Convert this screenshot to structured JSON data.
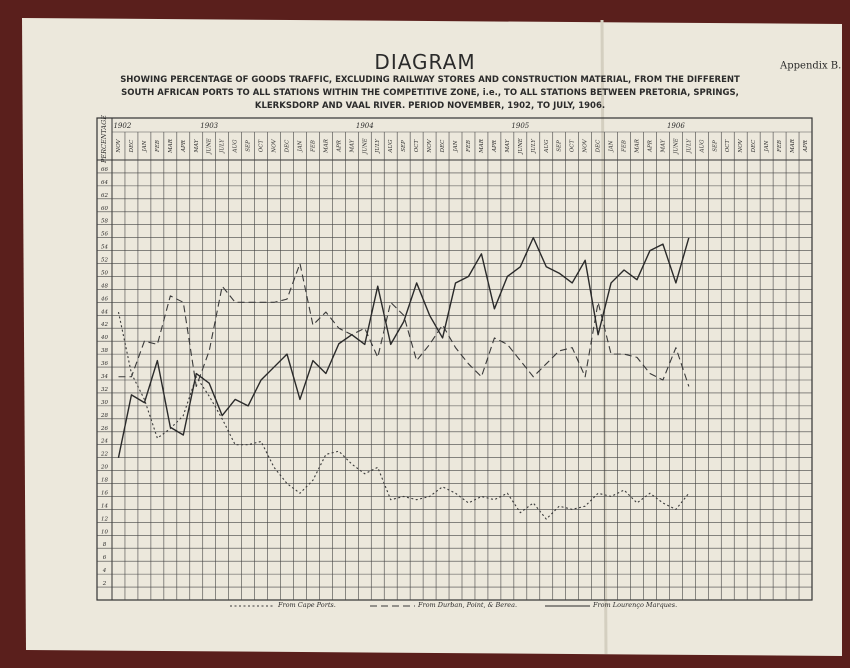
{
  "appendix": "Appendix B.",
  "chart_data": {
    "type": "line",
    "title": "DIAGRAM",
    "subtitle": "SHOWING PERCENTAGE OF GOODS TRAFFIC, EXCLUDING RAILWAY STORES AND CONSTRUCTION MATERIAL, FROM THE DIFFERENT SOUTH AFRICAN PORTS TO ALL STATIONS WITHIN THE COMPETITIVE ZONE, i.e., TO ALL STATIONS BETWEEN PRETORIA, SPRINGS, KLERKSDORP AND VAAL RIVER. PERIOD NOVEMBER, 1902, TO JULY, 1906.",
    "y_label": "PERCENTAGE",
    "year_labels": [
      "1902",
      "1903",
      "1904",
      "1905",
      "1906"
    ],
    "categories": [
      "NOV",
      "DEC",
      "JAN",
      "FEB",
      "MAR",
      "APR",
      "MAY",
      "JUNE",
      "JULY",
      "AUG",
      "SEP",
      "OCT",
      "NOV",
      "DEC",
      "JAN",
      "FEB",
      "MAR",
      "APR",
      "MAY",
      "JUNE",
      "JULY",
      "AUG",
      "SEP",
      "OCT",
      "NOV",
      "DEC",
      "JAN",
      "FEB",
      "MAR",
      "APR",
      "MAY",
      "JUNE",
      "JULY",
      "AUG",
      "SEP",
      "OCT",
      "NOV",
      "DEC",
      "JAN",
      "FEB",
      "MAR",
      "APR",
      "MAY",
      "JUNE",
      "JULY",
      "AUG",
      "SEP",
      "OCT",
      "NOV",
      "DEC",
      "JAN",
      "FEB",
      "MAR",
      "APR"
    ],
    "series": [
      {
        "name": "From Cape Ports.",
        "color": "#3a3a3a",
        "dash": "dotted",
        "values": [
          44.5,
          35,
          31,
          25,
          26.5,
          28.5,
          34.5,
          31.5,
          28,
          24,
          24,
          24.5,
          20.5,
          18,
          16.5,
          18.5,
          22.5,
          23,
          21,
          19.5,
          20.5,
          15.5,
          16,
          15.5,
          16,
          17.5,
          16.5,
          15,
          16,
          15.5,
          16.5,
          13.5,
          15,
          12.5,
          14.5,
          14,
          14.5,
          16.5,
          16,
          17,
          15,
          16.5,
          15,
          14,
          16.5,
          null,
          null,
          null,
          null,
          null,
          null,
          null,
          null,
          null
        ]
      },
      {
        "name": "From Durban, Point, & Berea.",
        "color": "#3a3a3a",
        "dash": "dashed",
        "values": [
          34.5,
          34.5,
          40,
          39.5,
          47,
          46,
          33,
          38.5,
          48.5,
          46,
          46,
          46,
          46,
          46.5,
          52,
          42.5,
          44.5,
          42,
          41,
          42,
          37.5,
          46,
          44,
          37,
          39.5,
          42.5,
          39,
          36.5,
          34.5,
          40.5,
          39.5,
          37,
          34.5,
          36.5,
          38.5,
          39,
          34.5,
          46,
          38,
          38,
          37.5,
          35,
          34,
          39,
          33,
          null,
          null,
          null,
          null,
          null,
          null,
          null,
          null,
          null
        ]
      },
      {
        "name": "From Lourenço Marques.",
        "color": "#2a2a2a",
        "dash": "solid",
        "values": [
          22,
          31.7,
          30.5,
          37,
          26.7,
          25.5,
          35,
          33.5,
          28.5,
          31,
          30,
          34,
          36,
          38,
          31,
          37,
          35,
          39.6,
          41,
          39.5,
          48.5,
          39.5,
          43,
          49,
          44,
          40.5,
          49,
          50,
          53.5,
          45,
          50,
          51.5,
          56,
          51.5,
          50.5,
          49,
          52.5,
          41,
          49,
          51,
          49.5,
          54,
          55,
          49,
          56,
          null,
          null,
          null,
          null,
          null,
          null,
          null,
          null,
          null
        ]
      }
    ],
    "ylim": [
      0,
      68
    ],
    "yticks": [
      2,
      4,
      6,
      8,
      10,
      12,
      14,
      16,
      18,
      20,
      22,
      24,
      26,
      28,
      30,
      32,
      34,
      36,
      38,
      40,
      42,
      44,
      46,
      48,
      50,
      52,
      54,
      56,
      58,
      60,
      62,
      64,
      66
    ],
    "grid": true
  }
}
